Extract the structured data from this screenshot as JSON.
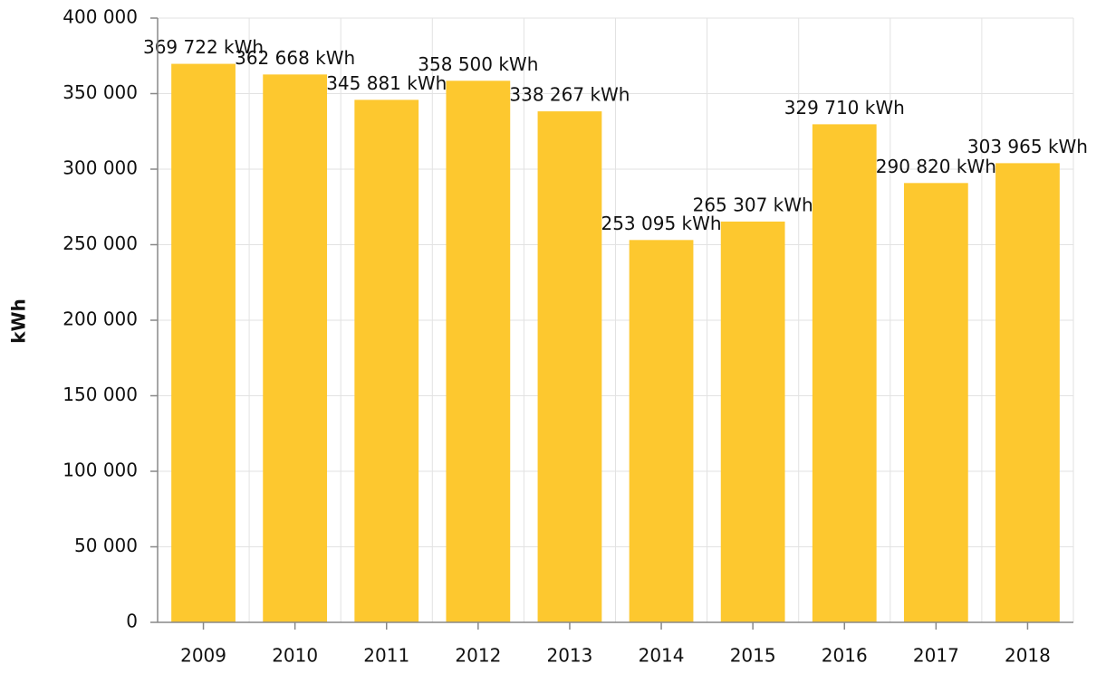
{
  "chart_data": {
    "type": "bar",
    "y_label": "kWh",
    "categories": [
      "2009",
      "2010",
      "2011",
      "2012",
      "2013",
      "2014",
      "2015",
      "2016",
      "2017",
      "2018"
    ],
    "values": [
      369722,
      362668,
      345881,
      358500,
      338267,
      253095,
      265307,
      329710,
      290820,
      303965
    ],
    "value_labels": [
      "369 722 kWh",
      "362 668 kWh",
      "345 881 kWh",
      "358 500 kWh",
      "338 267 kWh",
      "253 095 kWh",
      "265 307 kWh",
      "329 710 kWh",
      "290 820 kWh",
      "303 965 kWh"
    ],
    "color": "#fdc82f",
    "ylim": [
      0,
      400000
    ],
    "yticks": [
      0,
      {
        "value": 50000,
        "label": "50 000"
      },
      {
        "value": 100000,
        "label": "100 000"
      },
      {
        "value": 150000,
        "label": "150 000"
      },
      {
        "value": 200000,
        "label": "200 000"
      },
      {
        "value": 250000,
        "label": "250 000"
      },
      {
        "value": 300000,
        "label": "300 000"
      },
      {
        "value": 350000,
        "label": "350 000"
      },
      {
        "value": 400000,
        "label": "400 000"
      }
    ],
    "grid": true
  }
}
